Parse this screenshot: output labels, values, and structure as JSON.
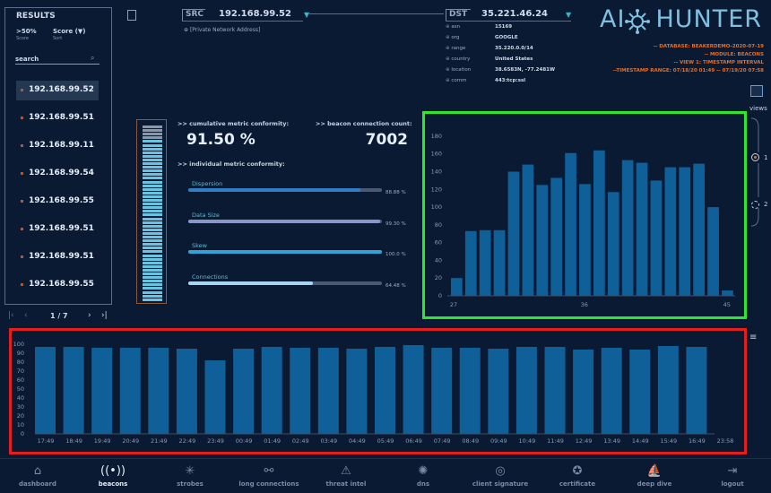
{
  "results": {
    "title": "RESULTS",
    "filter": {
      "value": ">50%",
      "value_caption": "Score",
      "sort": "Score (▼)",
      "sort_caption": "Sort"
    },
    "search_placeholder": "search",
    "items": [
      {
        "ip": "192.168.99.52",
        "selected": true
      },
      {
        "ip": "192.168.99.51",
        "selected": false
      },
      {
        "ip": "192.168.99.11",
        "selected": false
      },
      {
        "ip": "192.168.99.54",
        "selected": false
      },
      {
        "ip": "192.168.99.55",
        "selected": false
      },
      {
        "ip": "192.168.99.51",
        "selected": false
      },
      {
        "ip": "192.168.99.51",
        "selected": false
      },
      {
        "ip": "192.168.99.55",
        "selected": false
      }
    ],
    "pager": {
      "label": "1 / 7",
      "first": "|‹",
      "prev": "‹",
      "next": "›",
      "last": "›|"
    }
  },
  "src": {
    "label": "SRC",
    "ip": "192.168.99.52",
    "note": "[Private Network Address]"
  },
  "dst": {
    "label": "DST",
    "ip": "35.221.46.24",
    "details": [
      {
        "key": "asn",
        "value": "15169"
      },
      {
        "key": "org",
        "value": "GOOGLE"
      },
      {
        "key": "range",
        "value": "35.220.0.0/14"
      },
      {
        "key": "country",
        "value": "United States"
      },
      {
        "key": "location",
        "value": "38.6583N, -77.2481W"
      },
      {
        "key": "comm",
        "value": "443:tcp:ssl"
      }
    ]
  },
  "logo": {
    "left": "AI",
    "right": "HUNTER"
  },
  "meta": {
    "database": "-- DATABASE: BEAKERDEMO-2020-07-19",
    "module": "-- MODULE: BEACONS",
    "view": "-- VIEW 1: TIMESTAMP INTERVAL",
    "range": "--TIMESTAMP RANGE: 07/18/20 01:49 -- 07/19/20 07:58"
  },
  "metrics": {
    "cumulative_label": ">> cumulative metric conformity:",
    "cumulative_value": "91.50 %",
    "cumulative_fraction": 0.915,
    "beacon_label": ">> beacon connection count:",
    "beacon_count": "7002",
    "individual_label": ">> individual metric conformity:",
    "items": [
      {
        "name": "Dispersion",
        "value": "88.88 %",
        "fraction": 0.8888,
        "color": "#2f7fc6"
      },
      {
        "name": "Data Size",
        "value": "99.30 %",
        "fraction": 0.993,
        "color": "#8a96c8"
      },
      {
        "name": "Skew",
        "value": "100.0 %",
        "fraction": 1.0,
        "color": "#2fa3d6"
      },
      {
        "name": "Connections",
        "value": "64.48 %",
        "fraction": 0.6448,
        "color": "#a8d4f4"
      }
    ]
  },
  "views": {
    "label": "views",
    "options": [
      "1",
      "2"
    ],
    "selected": "1"
  },
  "chart_data": [
    {
      "type": "bar",
      "title": "",
      "xlabel": "",
      "ylabel": "",
      "ylim": [
        0,
        185
      ],
      "yticks": [
        0,
        20,
        40,
        60,
        80,
        100,
        120,
        140,
        160,
        180
      ],
      "x_tick_labels": [
        {
          "index": 0,
          "label": "27"
        },
        {
          "index": 11,
          "label": "36"
        },
        {
          "index": 23,
          "label": "45"
        }
      ],
      "values": [
        20,
        73,
        74,
        74,
        140,
        148,
        125,
        133,
        161,
        126,
        164,
        117,
        153,
        150,
        130,
        145,
        145,
        149,
        100,
        6
      ],
      "bar_color": "#0f5f99",
      "grid": false
    },
    {
      "type": "bar",
      "title": "",
      "xlabel": "",
      "ylabel": "",
      "ylim": [
        0,
        100
      ],
      "yticks": [
        0,
        10,
        20,
        30,
        40,
        50,
        60,
        70,
        80,
        90,
        100
      ],
      "categories": [
        "17:49",
        "18:49",
        "19:49",
        "20:49",
        "21:49",
        "22:49",
        "23:49",
        "00:49",
        "01:49",
        "02:49",
        "03:49",
        "04:49",
        "05:49",
        "06:49",
        "07:49",
        "08:49",
        "09:49",
        "10:49",
        "11:49",
        "12:49",
        "13:49",
        "14:49",
        "15:49",
        "16:49",
        "23:58"
      ],
      "values": [
        97,
        97,
        96,
        96,
        96,
        95,
        82,
        95,
        97,
        96,
        96,
        95,
        97,
        99,
        96,
        96,
        95,
        97,
        97,
        94,
        96,
        94,
        98,
        97,
        0
      ],
      "bar_color": "#0f5f99",
      "grid": false
    }
  ],
  "nav": [
    {
      "label": "dashboard",
      "icon": "⌂",
      "icon_name": "home-icon",
      "active": false
    },
    {
      "label": "beacons",
      "icon": "((•))",
      "icon_name": "beacon-icon",
      "active": true
    },
    {
      "label": "strobes",
      "icon": "✳",
      "icon_name": "strobe-icon",
      "active": false
    },
    {
      "label": "long connections",
      "icon": "⚯",
      "icon_name": "connections-icon",
      "active": false
    },
    {
      "label": "threat intel",
      "icon": "⚠",
      "icon_name": "warning-icon",
      "active": false
    },
    {
      "label": "dns",
      "icon": "✺",
      "icon_name": "dns-icon",
      "active": false
    },
    {
      "label": "client signature",
      "icon": "◎",
      "icon_name": "fingerprint-icon",
      "active": false
    },
    {
      "label": "certificate",
      "icon": "✪",
      "icon_name": "certificate-icon",
      "active": false
    },
    {
      "label": "deep dive",
      "icon": "⛵",
      "icon_name": "deep-dive-icon",
      "active": false
    },
    {
      "label": "logout",
      "icon": "⇥",
      "icon_name": "logout-icon",
      "active": false
    }
  ]
}
